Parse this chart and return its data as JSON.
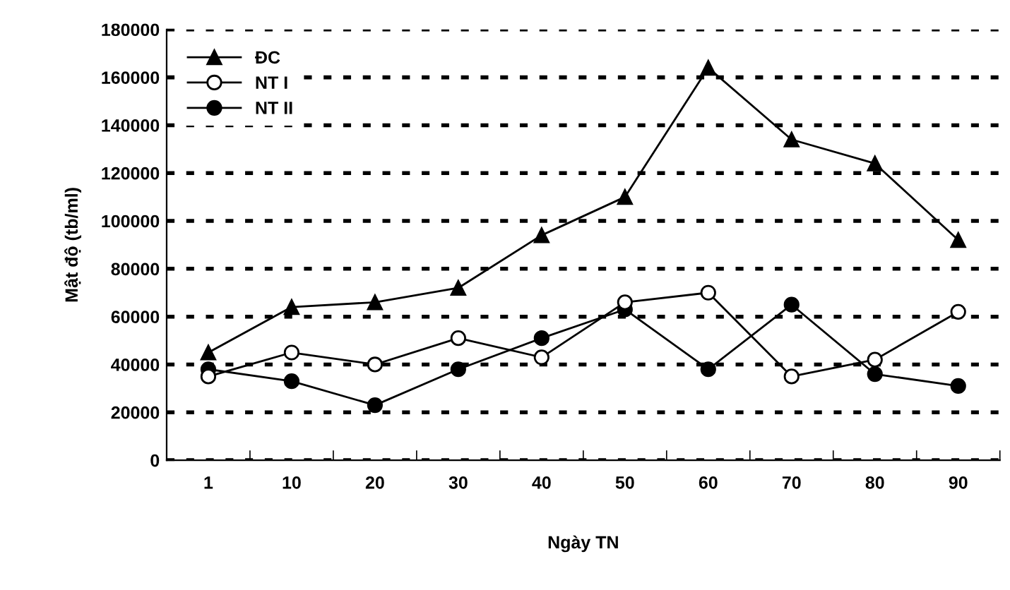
{
  "chart_data": {
    "type": "line",
    "xlabel": "Ngày TN",
    "ylabel": "Mật độ (tb/ml)",
    "categories": [
      "1",
      "10",
      "20",
      "30",
      "40",
      "50",
      "60",
      "70",
      "80",
      "90"
    ],
    "series": [
      {
        "name": "ĐC",
        "color": "#000000",
        "marker": "triangle",
        "values": [
          45000,
          64000,
          66000,
          72000,
          94000,
          110000,
          164000,
          134000,
          124000,
          92000
        ]
      },
      {
        "name": "NT I",
        "color": "#000000",
        "marker": "circle_open",
        "values": [
          35000,
          45000,
          40000,
          51000,
          43000,
          66000,
          70000,
          35000,
          42000,
          62000
        ]
      },
      {
        "name": "NT II",
        "color": "#000000",
        "marker": "circle",
        "values": [
          38000,
          33000,
          23000,
          38000,
          51000,
          63000,
          38000,
          65000,
          36000,
          31000
        ]
      }
    ],
    "ylim": [
      0,
      180000
    ],
    "yticks": [
      0,
      20000,
      40000,
      60000,
      80000,
      100000,
      120000,
      140000,
      160000,
      180000
    ],
    "grid": "y",
    "legend": "top left",
    "line_style": "solid"
  }
}
